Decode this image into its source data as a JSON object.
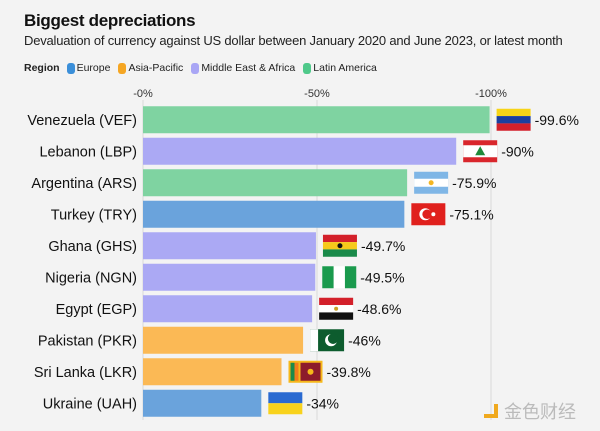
{
  "chart_data": {
    "type": "bar",
    "orientation": "horizontal",
    "title": "Biggest depreciations",
    "subtitle": "Devaluation of currency against US dollar between January 2020 and June 2023, or latest month",
    "legend_title": "Region",
    "legend": [
      {
        "name": "Europe",
        "color": "#3b8fd9"
      },
      {
        "name": "Asia-Pacific",
        "color": "#f5a623"
      },
      {
        "name": "Middle East & Africa",
        "color": "#a9a6f5"
      },
      {
        "name": "Latin America",
        "color": "#4fc98a"
      }
    ],
    "legend_placement": "top-left",
    "xticks": [
      "-0%",
      "-50%",
      "-100%"
    ],
    "xlim": [
      0,
      -100
    ],
    "grid": true,
    "categories": [
      "Venezuela (VEF)",
      "Lebanon (LBP)",
      "Argentina (ARS)",
      "Turkey (TRY)",
      "Ghana (GHS)",
      "Nigeria (NGN)",
      "Egypt (EGP)",
      "Pakistan (PKR)",
      "Sri Lanka (LKR)",
      "Ukraine (UAH)"
    ],
    "values": [
      -99.6,
      -90,
      -75.9,
      -75.1,
      -49.7,
      -49.5,
      -48.6,
      -46,
      -39.8,
      -34
    ],
    "labels": [
      "-99.6%",
      "-90%",
      "-75.9%",
      "-75.1%",
      "-49.7%",
      "-49.5%",
      "-48.6%",
      "-46%",
      "-39.8%",
      "-34%"
    ],
    "regions": [
      "Latin America",
      "Middle East & Africa",
      "Latin America",
      "Europe",
      "Middle East & Africa",
      "Middle East & Africa",
      "Middle East & Africa",
      "Asia-Pacific",
      "Asia-Pacific",
      "Europe"
    ],
    "bar_colors": {
      "Europe": "#6aa3dc",
      "Asia-Pacific": "#fbb955",
      "Middle East & Africa": "#aba9f4",
      "Latin America": "#7fd3a1"
    },
    "flags": [
      "venezuela-flag",
      "lebanon-flag",
      "argentina-flag",
      "turkey-flag",
      "ghana-flag",
      "nigeria-flag",
      "egypt-flag",
      "pakistan-flag",
      "sri-lanka-flag",
      "ukraine-flag"
    ]
  },
  "watermark": "金色财经"
}
